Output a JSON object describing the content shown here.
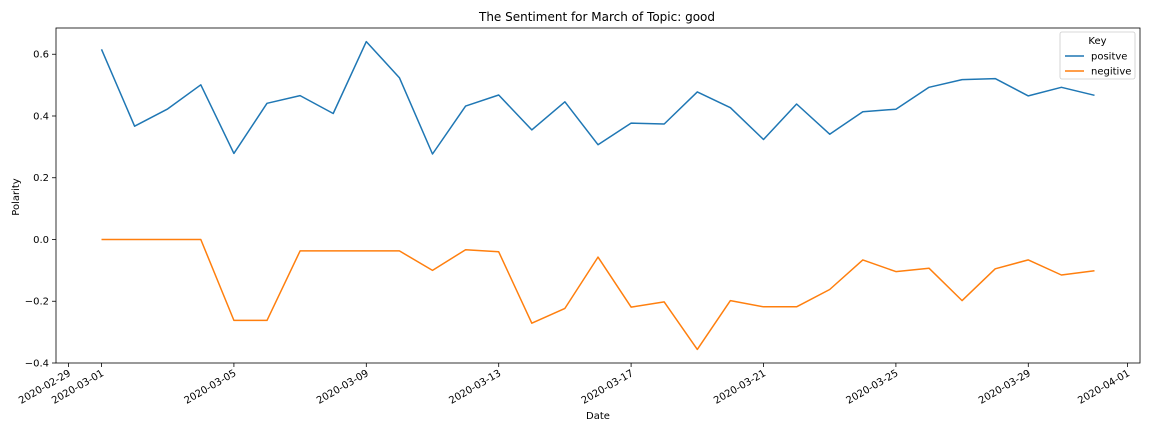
{
  "chart_data": {
    "type": "line",
    "title": "The Sentiment for March of Topic: good",
    "xlabel": "Date",
    "ylabel": "Polarity",
    "x": [
      "2020-03-01",
      "2020-03-02",
      "2020-03-03",
      "2020-03-04",
      "2020-03-05",
      "2020-03-06",
      "2020-03-07",
      "2020-03-08",
      "2020-03-09",
      "2020-03-10",
      "2020-03-11",
      "2020-03-12",
      "2020-03-13",
      "2020-03-14",
      "2020-03-15",
      "2020-03-16",
      "2020-03-17",
      "2020-03-18",
      "2020-03-19",
      "2020-03-20",
      "2020-03-21",
      "2020-03-22",
      "2020-03-23",
      "2020-03-24",
      "2020-03-25",
      "2020-03-26",
      "2020-03-27",
      "2020-03-28",
      "2020-03-29",
      "2020-03-30",
      "2020-03-31"
    ],
    "series": [
      {
        "name": "positve",
        "color": "#1f77b4",
        "values": [
          0.616,
          0.367,
          0.423,
          0.501,
          0.279,
          0.441,
          0.466,
          0.408,
          0.641,
          0.524,
          0.277,
          0.432,
          0.468,
          0.355,
          0.446,
          0.307,
          0.377,
          0.374,
          0.478,
          0.427,
          0.324,
          0.439,
          0.341,
          0.414,
          0.422,
          0.493,
          0.518,
          0.521,
          0.465,
          0.493,
          0.467
        ]
      },
      {
        "name": "negitive",
        "color": "#ff7f0e",
        "values": [
          0.0,
          0.0,
          0.0,
          0.0,
          -0.262,
          -0.262,
          -0.037,
          -0.037,
          -0.037,
          -0.037,
          -0.1,
          -0.033,
          -0.04,
          -0.271,
          -0.223,
          -0.057,
          -0.219,
          -0.202,
          -0.356,
          -0.198,
          -0.218,
          -0.218,
          -0.162,
          -0.066,
          -0.104,
          -0.093,
          -0.198,
          -0.095,
          -0.066,
          -0.115,
          -0.101
        ]
      }
    ],
    "xlim": [
      "2020-02-28T15:00",
      "2020-04-01T09:00"
    ],
    "ylim": [
      -0.4,
      0.685
    ],
    "yticks": [
      -0.4,
      -0.2,
      0.0,
      0.2,
      0.4,
      0.6
    ],
    "ytick_labels": [
      "−0.4",
      "−0.2",
      "0.0",
      "0.2",
      "0.4",
      "0.6"
    ],
    "xticks": [
      "2020-02-29",
      "2020-03-01",
      "2020-03-05",
      "2020-03-09",
      "2020-03-13",
      "2020-03-17",
      "2020-03-21",
      "2020-03-25",
      "2020-03-29",
      "2020-04-01"
    ],
    "legend": {
      "title": "Key",
      "placement": "top-right"
    },
    "grid": false
  }
}
